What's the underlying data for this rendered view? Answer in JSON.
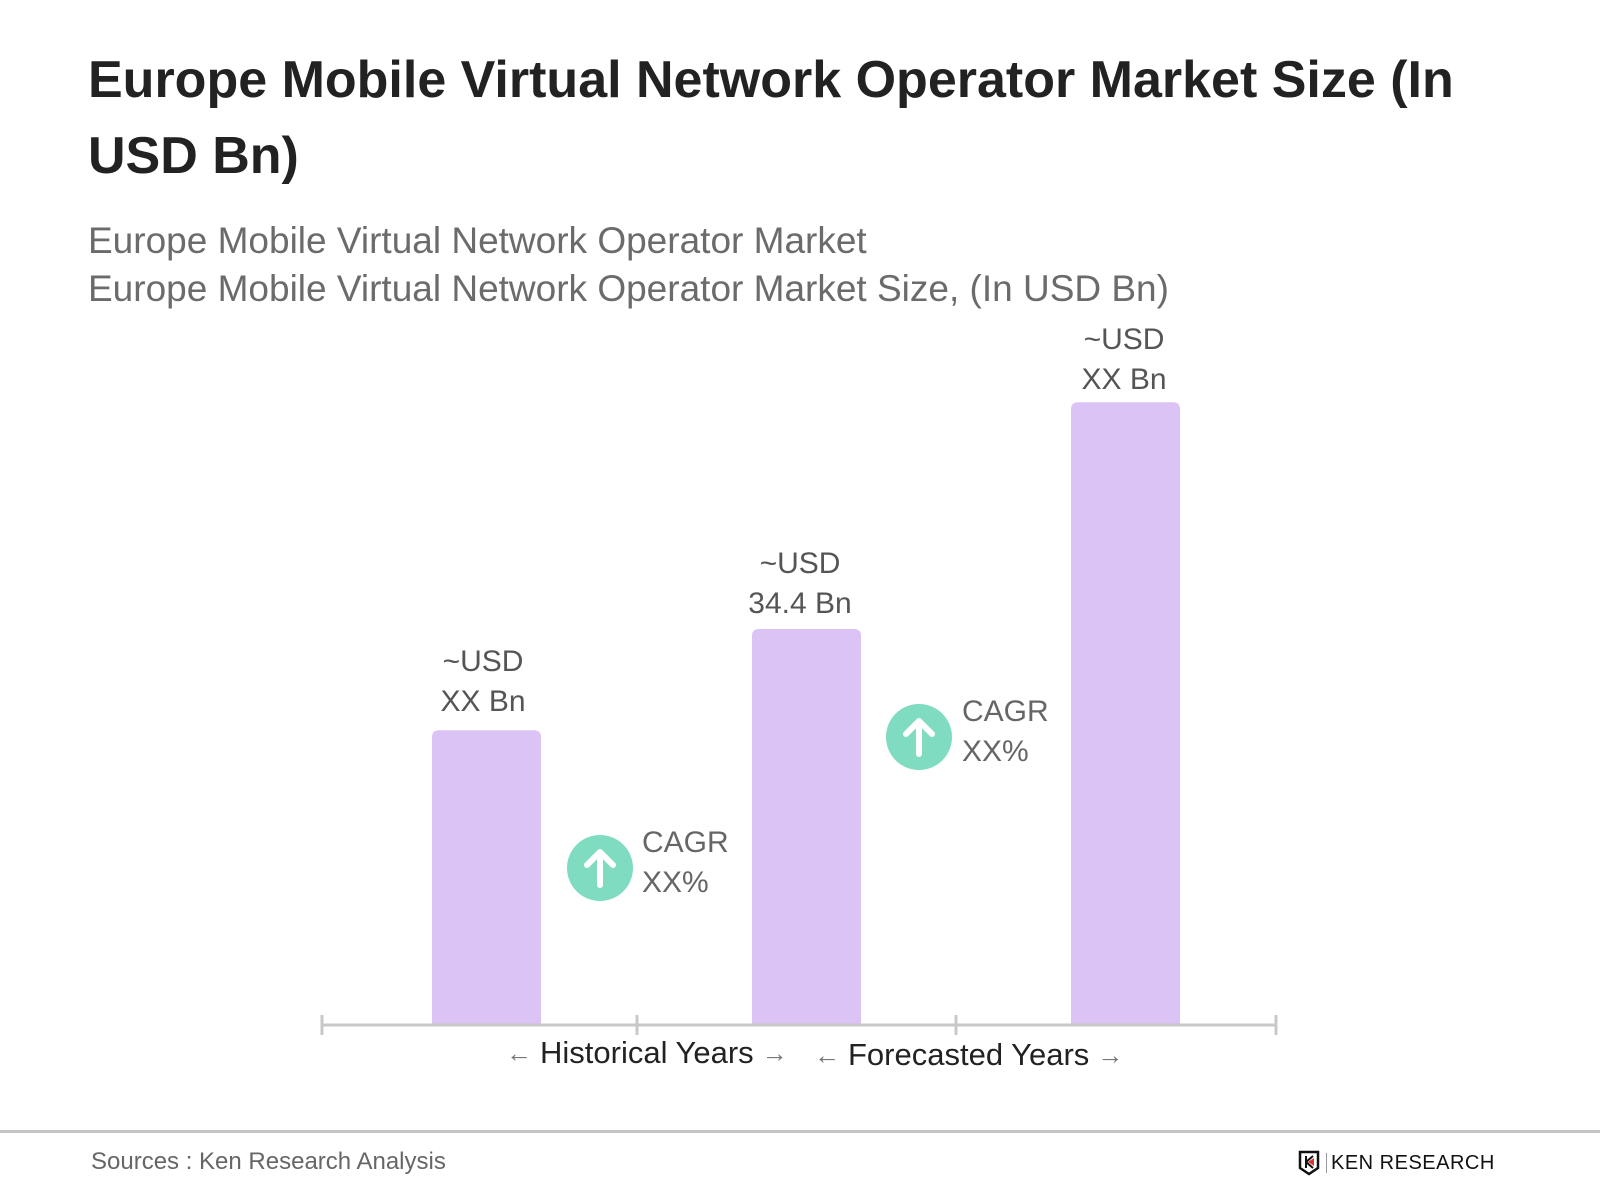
{
  "title": "Europe Mobile Virtual Network Operator Market Size (In USD Bn)",
  "subtitle_1": "Europe Mobile Virtual Network Operator Market",
  "subtitle_2": "Europe Mobile Virtual Network Operator Market Size, (In USD Bn)",
  "chart_data": {
    "type": "bar",
    "title": "Europe Mobile Virtual Network Operator Market Size (In USD Bn)",
    "categories": [
      "",
      "",
      ""
    ],
    "values": [
      25.6,
      34.4,
      54.1
    ],
    "data_labels": [
      {
        "line1": "~USD",
        "line2": "XX Bn"
      },
      {
        "line1": "~USD",
        "line2": "34.4 Bn"
      },
      {
        "line1": "~USD",
        "line2": "XX Bn"
      }
    ],
    "cagr_labels": [
      {
        "line1": "CAGR",
        "line2": "XX%"
      },
      {
        "line1": "CAGR",
        "line2": "XX%"
      }
    ],
    "axis_groups": [
      "Historical Years",
      "Forecasted Years"
    ],
    "ylim": [
      0,
      60
    ],
    "grid": false,
    "bar_color": "#dcc3f6",
    "cagr_icon_color": "#7fdcc0"
  },
  "footer": {
    "source": "Sources : Ken Research Analysis",
    "logo_text": "KEN RESEARCH"
  }
}
